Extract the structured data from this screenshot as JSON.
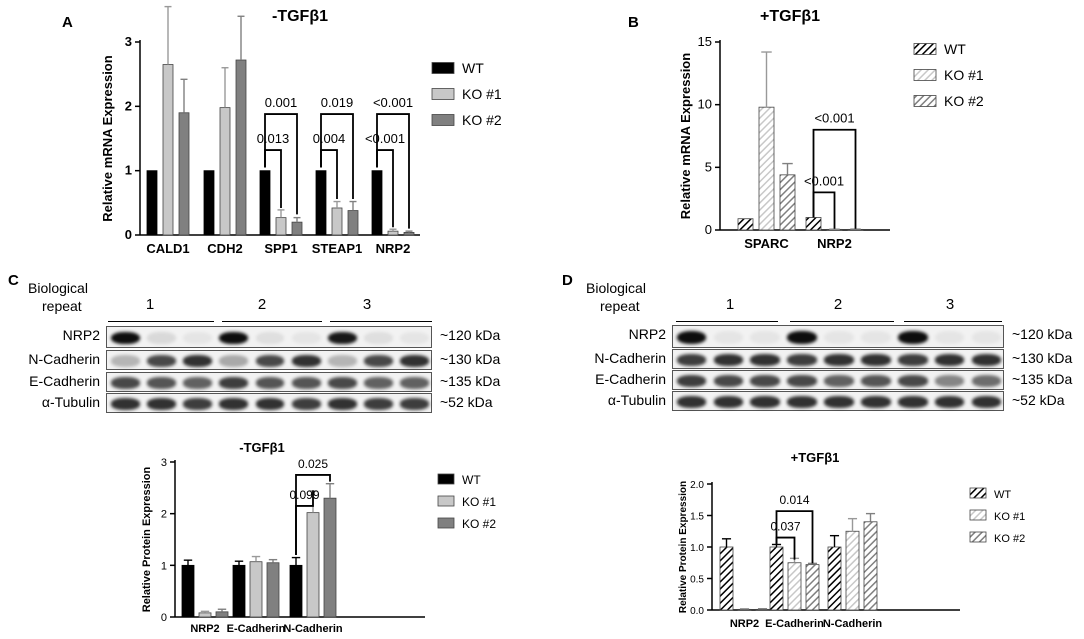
{
  "colors": {
    "wt": "#000000",
    "ko1": "#c8c8c8",
    "ko2": "#808080"
  },
  "panelA": {
    "letter": "A",
    "title": "-TGFβ1"
  },
  "panelB": {
    "letter": "B",
    "title": "+TGFβ1"
  },
  "panelC": {
    "letter": "C",
    "bio_label_1": "Biological",
    "bio_label_2": "repeat",
    "repeats": [
      "1",
      "2",
      "3"
    ],
    "rows": [
      "NRP2",
      "N-Cadherin",
      "E-Cadherin",
      "α-Tubulin"
    ],
    "kda": [
      "~120 kDa",
      "~130 kDa",
      "~135 kDa",
      "~52 kDa"
    ],
    "chart_title": "-TGFβ1"
  },
  "panelD": {
    "letter": "D",
    "bio_label_1": "Biological",
    "bio_label_2": "repeat",
    "repeats": [
      "1",
      "2",
      "3"
    ],
    "rows": [
      "NRP2",
      "N-Cadherin",
      "E-Cadherin",
      "α-Tubulin"
    ],
    "kda": [
      "~120 kDa",
      "~130 kDa",
      "~135 kDa",
      "~52 kDa"
    ],
    "chart_title": "+TGFβ1"
  },
  "chart_data": [
    {
      "id": "A",
      "type": "bar",
      "title": "-TGFβ1",
      "ylabel": "Relative mRNA Expression",
      "xlabel": "",
      "categories": [
        "CALD1",
        "CDH2",
        "SPP1",
        "STEAP1",
        "NRP2"
      ],
      "ylim": [
        0,
        3
      ],
      "yticks": [
        0,
        1,
        2,
        3
      ],
      "series": [
        {
          "name": "WT",
          "values": [
            1,
            1,
            1,
            1,
            1
          ],
          "errors": [
            0,
            0,
            0,
            0,
            0
          ]
        },
        {
          "name": "KO #1",
          "values": [
            2.65,
            1.98,
            0.27,
            0.42,
            0.06
          ],
          "errors": [
            0.9,
            0.62,
            0.12,
            0.1,
            0.03
          ]
        },
        {
          "name": "KO #2",
          "values": [
            1.9,
            2.72,
            0.2,
            0.38,
            0.04
          ],
          "errors": [
            0.52,
            0.68,
            0.07,
            0.14,
            0.02
          ]
        }
      ],
      "annotations": [
        {
          "category": "SPP1",
          "from": 0,
          "to": 1,
          "text": "0.013"
        },
        {
          "category": "SPP1",
          "from": 0,
          "to": 2,
          "text": "0.001"
        },
        {
          "category": "STEAP1",
          "from": 0,
          "to": 1,
          "text": "0.004"
        },
        {
          "category": "STEAP1",
          "from": 0,
          "to": 2,
          "text": "0.019"
        },
        {
          "category": "NRP2",
          "from": 0,
          "to": 1,
          "text": "<0.001"
        },
        {
          "category": "NRP2",
          "from": 0,
          "to": 2,
          "text": "<0.001"
        }
      ],
      "legend": "right",
      "hatched": false
    },
    {
      "id": "B",
      "type": "bar",
      "title": "+TGFβ1",
      "ylabel": "Relative mRNA Expression",
      "xlabel": "",
      "categories": [
        "SPARC",
        "NRP2"
      ],
      "ylim": [
        0,
        15
      ],
      "yticks": [
        0,
        5,
        10,
        15
      ],
      "series": [
        {
          "name": "WT",
          "values": [
            0.9,
            1.0
          ],
          "errors": [
            0,
            0
          ]
        },
        {
          "name": "KO #1",
          "values": [
            9.8,
            0.05
          ],
          "errors": [
            4.4,
            0.02
          ]
        },
        {
          "name": "KO #2",
          "values": [
            4.4,
            0.05
          ],
          "errors": [
            0.9,
            0.02
          ]
        }
      ],
      "annotations": [
        {
          "category": "NRP2",
          "from": 0,
          "to": 1,
          "text": "<0.001"
        },
        {
          "category": "NRP2",
          "from": 0,
          "to": 2,
          "text": "<0.001"
        }
      ],
      "legend": "right",
      "hatched": true
    },
    {
      "id": "C",
      "type": "bar",
      "title": "-TGFβ1",
      "ylabel": "Relative Protein Expression",
      "xlabel": "",
      "categories": [
        "NRP2",
        "E-Cadherin",
        "N-Cadherin"
      ],
      "ylim": [
        0,
        3
      ],
      "yticks": [
        0,
        1,
        2,
        3
      ],
      "series": [
        {
          "name": "WT",
          "values": [
            1.0,
            1.0,
            1.0
          ],
          "errors": [
            0.1,
            0.08,
            0.15
          ]
        },
        {
          "name": "KO #1",
          "values": [
            0.08,
            1.07,
            2.02
          ],
          "errors": [
            0.03,
            0.1,
            0.42
          ]
        },
        {
          "name": "KO #2",
          "values": [
            0.1,
            1.05,
            2.3
          ],
          "errors": [
            0.05,
            0.06,
            0.28
          ]
        }
      ],
      "annotations": [
        {
          "category": "N-Cadherin",
          "from": 0,
          "to": 1,
          "text": "0.099"
        },
        {
          "category": "N-Cadherin",
          "from": 0,
          "to": 2,
          "text": "0.025"
        }
      ],
      "legend": "right",
      "hatched": false
    },
    {
      "id": "D",
      "type": "bar",
      "title": "+TGFβ1",
      "ylabel": "Relative Protein Expression",
      "xlabel": "",
      "categories": [
        "NRP2",
        "E-Cadherin",
        "N-Cadherin"
      ],
      "ylim": [
        0,
        2.0
      ],
      "yticks": [
        "0.0",
        "0.5",
        "1.0",
        "1.5",
        "2.0"
      ],
      "series": [
        {
          "name": "WT",
          "values": [
            1.0,
            1.0,
            1.0
          ],
          "errors": [
            0.13,
            0.04,
            0.18
          ]
        },
        {
          "name": "KO #1",
          "values": [
            0.01,
            0.75,
            1.25
          ],
          "errors": [
            0.01,
            0.07,
            0.2
          ]
        },
        {
          "name": "KO #2",
          "values": [
            0.01,
            0.72,
            1.4
          ],
          "errors": [
            0.01,
            0.02,
            0.13
          ]
        }
      ],
      "annotations": [
        {
          "category": "E-Cadherin",
          "from": 0,
          "to": 1,
          "text": "0.037"
        },
        {
          "category": "E-Cadherin",
          "from": 0,
          "to": 2,
          "text": "0.014"
        }
      ],
      "legend": "right",
      "hatched": true
    }
  ]
}
